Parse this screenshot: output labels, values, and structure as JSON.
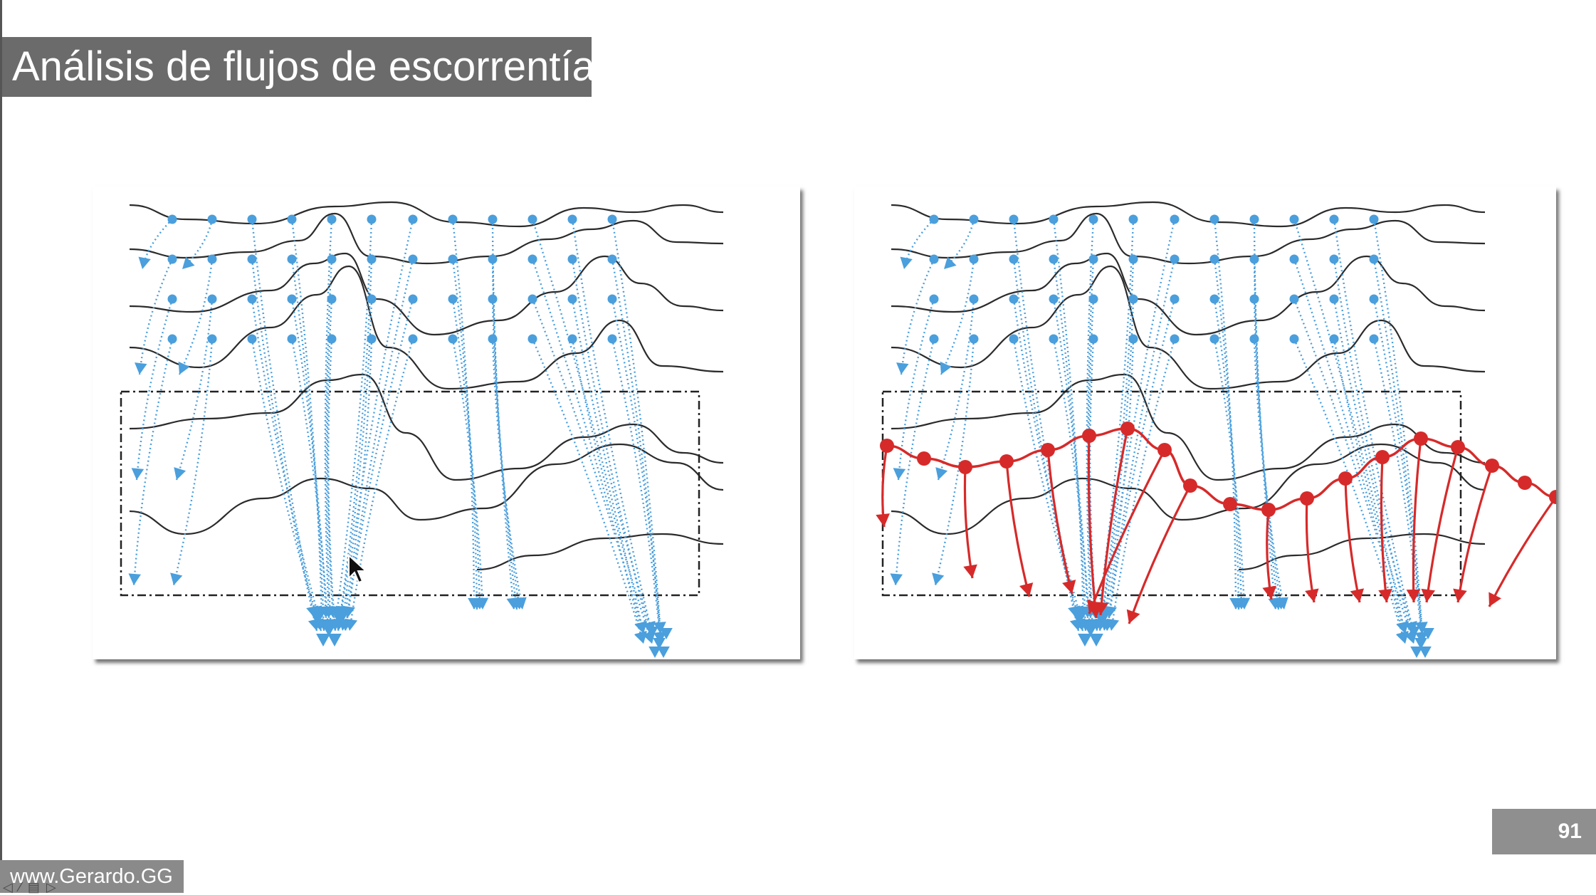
{
  "slide": {
    "title": "Análisis de flujos de escorrentía",
    "page_number": "91",
    "footer": "www.Gerardo.GG",
    "nav_glyphs": "◁ ⁄ ▤ ▷"
  },
  "colors": {
    "title_bar": "#6b6b6b",
    "contour": "#2b2b2b",
    "flow_blue": "#4a9fdc",
    "flow_red": "#d62a2a",
    "page_badge": "#8f8f8f"
  },
  "diagrams": [
    {
      "name": "flow-diagram-original",
      "red_overlay": false
    },
    {
      "name": "flow-diagram-with-collector",
      "red_overlay": true
    }
  ]
}
